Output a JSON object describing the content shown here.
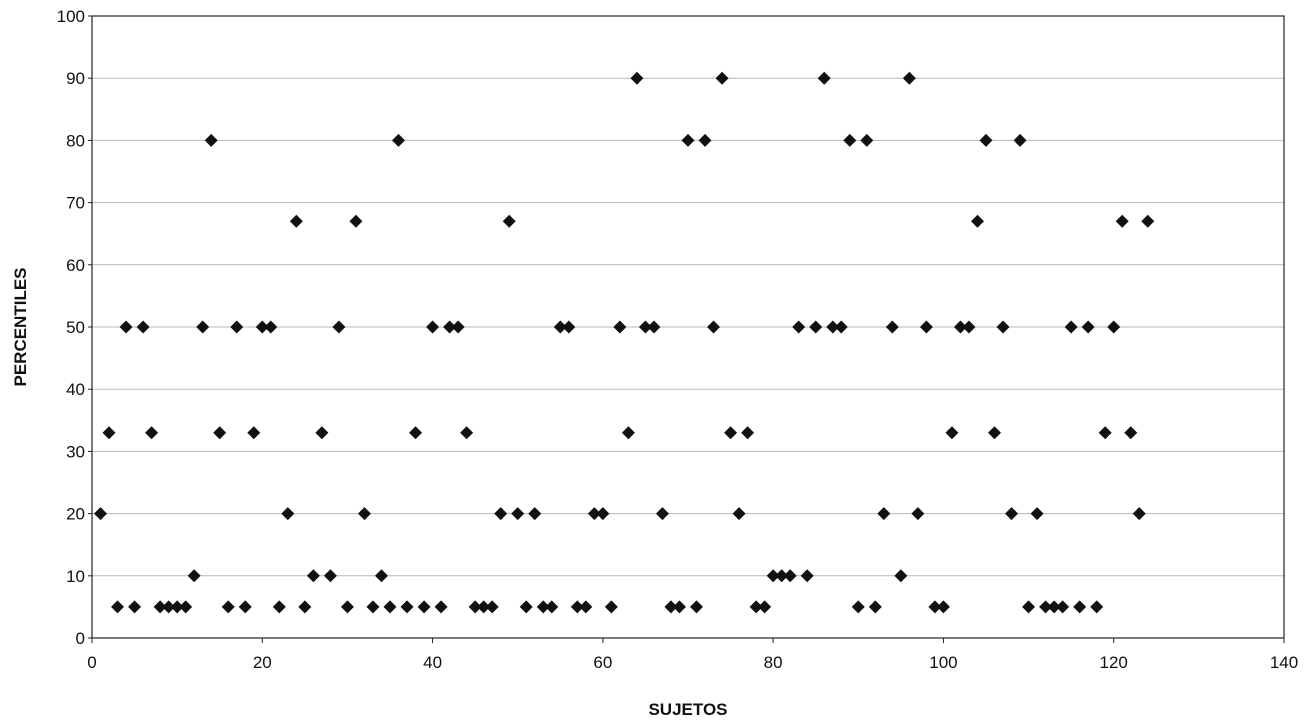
{
  "chart_data": {
    "type": "scatter",
    "title": "",
    "xlabel": "SUJETOS",
    "ylabel": "PERCENTILES",
    "xlim": [
      0,
      140
    ],
    "ylim": [
      0,
      100
    ],
    "xticks": [
      0,
      20,
      40,
      60,
      80,
      100,
      120,
      140
    ],
    "yticks": [
      0,
      10,
      20,
      30,
      40,
      50,
      60,
      70,
      80,
      90,
      100
    ],
    "grid": true,
    "marker": "diamond",
    "marker_color": "#111111",
    "series": [
      {
        "points": [
          [
            1,
            20
          ],
          [
            2,
            33
          ],
          [
            3,
            5
          ],
          [
            4,
            50
          ],
          [
            5,
            5
          ],
          [
            6,
            50
          ],
          [
            7,
            33
          ],
          [
            8,
            5
          ],
          [
            9,
            5
          ],
          [
            10,
            5
          ],
          [
            11,
            5
          ],
          [
            12,
            10
          ],
          [
            13,
            50
          ],
          [
            14,
            80
          ],
          [
            15,
            33
          ],
          [
            16,
            5
          ],
          [
            17,
            50
          ],
          [
            18,
            5
          ],
          [
            19,
            33
          ],
          [
            20,
            50
          ],
          [
            21,
            50
          ],
          [
            22,
            5
          ],
          [
            23,
            20
          ],
          [
            24,
            67
          ],
          [
            25,
            5
          ],
          [
            26,
            10
          ],
          [
            27,
            33
          ],
          [
            28,
            10
          ],
          [
            29,
            50
          ],
          [
            30,
            5
          ],
          [
            31,
            67
          ],
          [
            32,
            20
          ],
          [
            33,
            5
          ],
          [
            34,
            10
          ],
          [
            35,
            5
          ],
          [
            36,
            80
          ],
          [
            37,
            5
          ],
          [
            38,
            33
          ],
          [
            39,
            5
          ],
          [
            40,
            50
          ],
          [
            41,
            5
          ],
          [
            42,
            50
          ],
          [
            43,
            50
          ],
          [
            44,
            33
          ],
          [
            45,
            5
          ],
          [
            46,
            5
          ],
          [
            47,
            5
          ],
          [
            48,
            20
          ],
          [
            49,
            67
          ],
          [
            50,
            20
          ],
          [
            51,
            5
          ],
          [
            52,
            20
          ],
          [
            53,
            5
          ],
          [
            54,
            5
          ],
          [
            55,
            50
          ],
          [
            56,
            50
          ],
          [
            57,
            5
          ],
          [
            58,
            5
          ],
          [
            59,
            20
          ],
          [
            60,
            20
          ],
          [
            61,
            5
          ],
          [
            62,
            50
          ],
          [
            63,
            33
          ],
          [
            64,
            90
          ],
          [
            65,
            50
          ],
          [
            66,
            50
          ],
          [
            67,
            20
          ],
          [
            68,
            5
          ],
          [
            69,
            5
          ],
          [
            70,
            80
          ],
          [
            71,
            5
          ],
          [
            72,
            80
          ],
          [
            73,
            50
          ],
          [
            74,
            90
          ],
          [
            75,
            33
          ],
          [
            76,
            20
          ],
          [
            77,
            33
          ],
          [
            78,
            5
          ],
          [
            79,
            5
          ],
          [
            80,
            10
          ],
          [
            81,
            10
          ],
          [
            82,
            10
          ],
          [
            83,
            50
          ],
          [
            84,
            10
          ],
          [
            85,
            50
          ],
          [
            86,
            90
          ],
          [
            87,
            50
          ],
          [
            88,
            50
          ],
          [
            89,
            80
          ],
          [
            90,
            5
          ],
          [
            91,
            80
          ],
          [
            92,
            5
          ],
          [
            93,
            20
          ],
          [
            94,
            50
          ],
          [
            95,
            10
          ],
          [
            96,
            90
          ],
          [
            97,
            20
          ],
          [
            98,
            50
          ],
          [
            99,
            5
          ],
          [
            100,
            5
          ],
          [
            101,
            33
          ],
          [
            102,
            50
          ],
          [
            103,
            50
          ],
          [
            104,
            67
          ],
          [
            105,
            80
          ],
          [
            106,
            33
          ],
          [
            107,
            50
          ],
          [
            108,
            20
          ],
          [
            109,
            80
          ],
          [
            110,
            5
          ],
          [
            111,
            20
          ],
          [
            112,
            5
          ],
          [
            113,
            5
          ],
          [
            114,
            5
          ],
          [
            115,
            50
          ],
          [
            116,
            5
          ],
          [
            117,
            50
          ],
          [
            118,
            5
          ],
          [
            119,
            33
          ],
          [
            120,
            50
          ],
          [
            121,
            67
          ],
          [
            122,
            33
          ],
          [
            123,
            20
          ],
          [
            124,
            67
          ]
        ]
      }
    ]
  }
}
